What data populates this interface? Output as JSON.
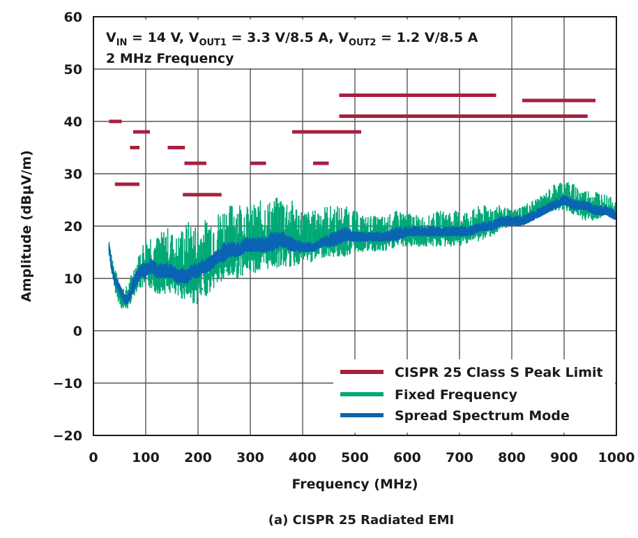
{
  "chart_data": {
    "type": "line",
    "title": "",
    "xlabel": "Frequency (MHz)",
    "ylabel": "Amplitude (dBµV/m)",
    "caption": "(a) CISPR 25 Radiated EMI",
    "xlim": [
      0,
      1000
    ],
    "ylim": [
      -20,
      60
    ],
    "xticks": [
      0,
      100,
      200,
      300,
      400,
      500,
      600,
      700,
      800,
      900,
      1000
    ],
    "yticks": [
      -20,
      -10,
      0,
      10,
      20,
      30,
      40,
      50,
      60
    ],
    "grid": true,
    "legend_position": "bottom-right",
    "annotation": {
      "line1": {
        "v1": "V",
        "v1_sub": "IN",
        "v1_val": " = 14 V, ",
        "v2": "V",
        "v2_sub": "OUT1",
        "v2_val": " = 3.3 V/8.5 A, ",
        "v3": "V",
        "v3_sub": "OUT2",
        "v3_val": " = 1.2 V/8.5 A"
      },
      "line2": "2 MHz Frequency"
    },
    "colors": {
      "limit": "#a6203f",
      "fixed": "#00a876",
      "spread": "#0a63b3"
    },
    "series": [
      {
        "name": "CISPR 25 Class S Peak Limit",
        "segments": [
          {
            "x": [
              30,
              54
            ],
            "y": 40
          },
          {
            "x": [
              41,
              88
            ],
            "y": 28
          },
          {
            "x": [
              70,
              88
            ],
            "y": 35
          },
          {
            "x": [
              76,
              108
            ],
            "y": 38
          },
          {
            "x": [
              142,
              175
            ],
            "y": 35
          },
          {
            "x": [
              174,
              216
            ],
            "y": 32
          },
          {
            "x": [
              171,
              245
            ],
            "y": 26
          },
          {
            "x": [
              300,
              330
            ],
            "y": 32
          },
          {
            "x": [
              380,
              512
            ],
            "y": 38
          },
          {
            "x": [
              420,
              450
            ],
            "y": 32
          },
          {
            "x": [
              470,
              770
            ],
            "y": 45
          },
          {
            "x": [
              470,
              945
            ],
            "y": 41
          },
          {
            "x": [
              820,
              960
            ],
            "y": 44
          }
        ]
      },
      {
        "name": "Fixed Frequency",
        "x": [
          30,
          35,
          40,
          45,
          50,
          55,
          60,
          65,
          70,
          75,
          80,
          85,
          90,
          95,
          100,
          110,
          120,
          130,
          140,
          150,
          160,
          170,
          180,
          190,
          200,
          210,
          220,
          230,
          240,
          250,
          260,
          270,
          280,
          290,
          300,
          320,
          340,
          360,
          380,
          400,
          420,
          440,
          460,
          480,
          500,
          520,
          540,
          560,
          580,
          600,
          620,
          640,
          660,
          680,
          700,
          720,
          740,
          760,
          780,
          800,
          820,
          840,
          860,
          880,
          900,
          920,
          940,
          960,
          980,
          1000
        ],
        "upper": [
          18,
          15,
          12,
          11,
          10,
          9,
          8,
          9,
          10,
          12,
          13,
          14,
          16,
          17,
          18,
          19,
          18,
          19,
          20,
          19,
          18,
          20,
          21,
          21,
          20,
          21,
          22,
          22,
          23,
          24,
          24,
          25,
          25,
          24,
          24,
          25,
          25,
          26,
          25,
          23,
          23,
          24,
          24,
          24,
          23,
          22,
          22,
          22,
          23,
          23,
          22,
          22,
          23,
          23,
          23,
          23,
          24,
          24,
          24,
          23,
          24,
          25,
          26,
          28,
          29,
          28,
          27,
          27,
          26,
          25
        ],
        "lower": [
          14,
          11,
          8,
          6,
          5,
          4,
          4,
          4,
          5,
          6,
          7,
          8,
          8,
          8,
          8,
          8,
          7,
          7,
          7,
          7,
          6,
          6,
          6,
          5,
          5,
          6,
          7,
          8,
          9,
          9,
          10,
          10,
          10,
          11,
          11,
          11,
          12,
          12,
          12,
          13,
          13,
          14,
          14,
          14,
          15,
          15,
          15,
          15,
          16,
          16,
          16,
          16,
          16,
          16,
          16,
          17,
          17,
          18,
          19,
          20,
          20,
          21,
          22,
          23,
          23,
          22,
          21,
          21,
          22,
          21
        ]
      },
      {
        "name": "Spread Spectrum Mode",
        "x": [
          30,
          35,
          40,
          45,
          50,
          55,
          60,
          65,
          70,
          75,
          80,
          85,
          90,
          95,
          100,
          110,
          120,
          130,
          140,
          150,
          160,
          170,
          180,
          190,
          200,
          210,
          220,
          230,
          240,
          250,
          260,
          270,
          280,
          290,
          300,
          320,
          340,
          360,
          380,
          400,
          420,
          440,
          460,
          480,
          500,
          520,
          540,
          560,
          580,
          600,
          620,
          640,
          660,
          680,
          700,
          720,
          740,
          760,
          780,
          800,
          820,
          840,
          860,
          880,
          900,
          920,
          940,
          960,
          980,
          1000
        ],
        "upper": [
          17,
          13,
          11,
          10,
          9,
          8,
          7,
          7,
          8,
          10,
          11,
          12,
          13,
          13,
          13,
          14,
          13,
          13,
          13,
          13,
          12,
          12,
          12,
          13,
          13,
          14,
          14,
          15,
          16,
          17,
          17,
          17,
          17,
          18,
          18,
          18,
          19,
          19,
          18,
          17,
          17,
          18,
          19,
          20,
          19,
          19,
          19,
          19,
          20,
          20,
          20,
          20,
          20,
          20,
          20,
          20,
          21,
          21,
          22,
          22,
          22,
          23,
          24,
          25,
          26,
          25,
          25,
          24,
          24,
          23
        ],
        "lower": [
          15,
          11,
          9,
          8,
          7,
          6,
          5,
          5,
          6,
          7,
          8,
          9,
          10,
          10,
          10,
          11,
          10,
          10,
          10,
          10,
          9,
          9,
          9,
          10,
          10,
          11,
          11,
          12,
          13,
          13,
          14,
          14,
          14,
          15,
          15,
          15,
          15,
          16,
          15,
          15,
          15,
          16,
          16,
          17,
          17,
          17,
          17,
          17,
          17,
          18,
          18,
          18,
          18,
          18,
          18,
          18,
          19,
          19,
          20,
          20,
          20,
          21,
          22,
          23,
          24,
          23,
          23,
          22,
          22,
          21
        ]
      }
    ]
  }
}
